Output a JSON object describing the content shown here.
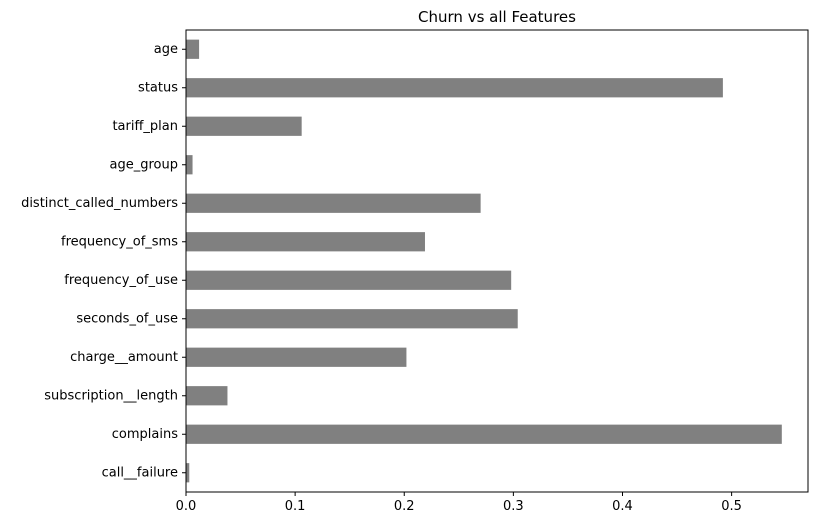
{
  "chart_data": {
    "type": "bar",
    "orientation": "horizontal",
    "title": "Churn vs all Features",
    "xlabel": "",
    "ylabel": "",
    "categories": [
      "call__failure",
      "complains",
      "subscription__length",
      "charge__amount",
      "seconds_of_use",
      "frequency_of_use",
      "frequency_of_sms",
      "distinct_called_numbers",
      "age_group",
      "tariff_plan",
      "status",
      "age"
    ],
    "values": [
      0.003,
      0.546,
      0.038,
      0.202,
      0.304,
      0.298,
      0.219,
      0.27,
      0.006,
      0.106,
      0.492,
      0.012
    ],
    "xlim": [
      0,
      0.57
    ],
    "xticks": [
      0.0,
      0.1,
      0.2,
      0.3,
      0.4,
      0.5
    ],
    "xtick_labels": [
      "0.0",
      "0.1",
      "0.2",
      "0.3",
      "0.4",
      "0.5"
    ],
    "bar_color": "#808080",
    "grid": false,
    "legend": "none"
  }
}
